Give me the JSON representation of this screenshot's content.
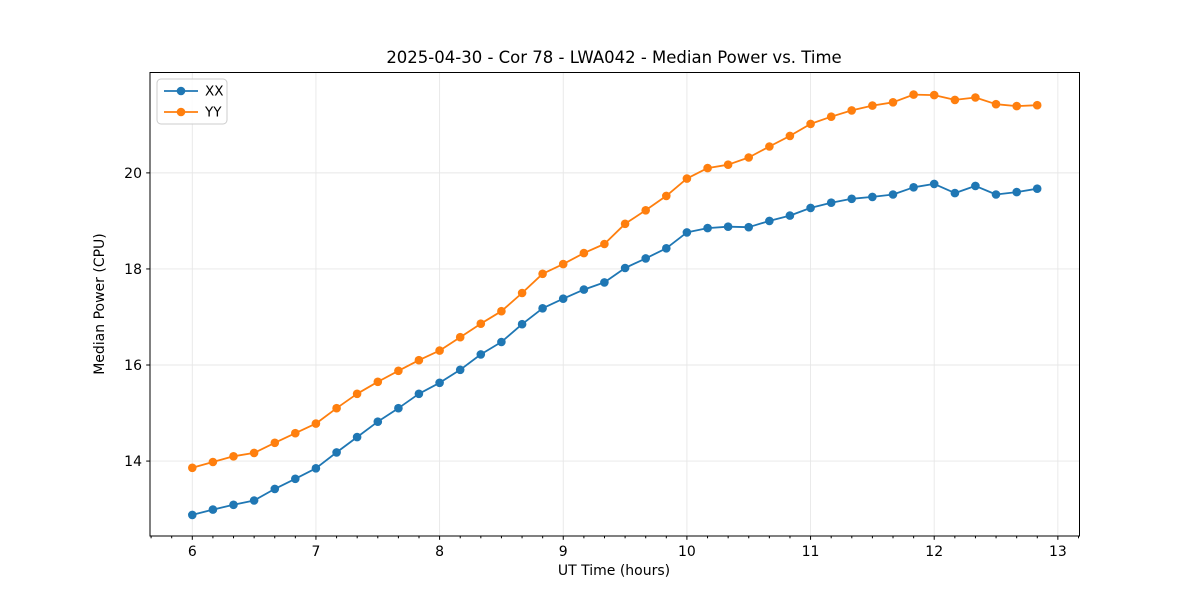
{
  "figure": {
    "background": "#ffffff",
    "grid_color": "#e7e7e7",
    "spine_color": "#000000",
    "text_color": "#000000",
    "legend_border_color": "#cccccc"
  },
  "chart_data": {
    "type": "line",
    "title": "2025-04-30 - Cor 78 - LWA042 - Median Power vs. Time",
    "xlabel": "UT Time (hours)",
    "ylabel": "Median Power (CPU)",
    "xlim": [
      5.658,
      13.175
    ],
    "ylim": [
      12.44,
      22.09
    ],
    "x_ticks": [
      6,
      7,
      8,
      9,
      10,
      11,
      12,
      13
    ],
    "y_ticks": [
      14,
      16,
      18,
      20
    ],
    "x_minor_step": 0.16667,
    "grid": true,
    "legend_position": "upper left",
    "marker": "circle",
    "x": [
      6.0,
      6.167,
      6.333,
      6.5,
      6.667,
      6.833,
      7.0,
      7.167,
      7.333,
      7.5,
      7.667,
      7.833,
      8.0,
      8.167,
      8.333,
      8.5,
      8.667,
      8.833,
      9.0,
      9.167,
      9.333,
      9.5,
      9.667,
      9.833,
      10.0,
      10.167,
      10.333,
      10.5,
      10.667,
      10.833,
      11.0,
      11.167,
      11.333,
      11.5,
      11.667,
      11.833,
      12.0,
      12.167,
      12.333,
      12.5,
      12.667,
      12.833
    ],
    "series": [
      {
        "name": "XX",
        "color": "#1f77b4",
        "values": [
          12.88,
          12.99,
          13.09,
          13.18,
          13.42,
          13.63,
          13.85,
          14.18,
          14.5,
          14.82,
          15.1,
          15.4,
          15.63,
          15.9,
          16.22,
          16.48,
          16.85,
          17.18,
          17.38,
          17.57,
          17.72,
          18.02,
          18.22,
          18.43,
          18.76,
          18.85,
          18.88,
          18.87,
          19.0,
          19.11,
          19.27,
          19.38,
          19.46,
          19.5,
          19.55,
          19.7,
          19.77,
          19.58,
          19.73,
          19.55,
          19.6,
          19.67
        ]
      },
      {
        "name": "YY",
        "color": "#ff7f0e",
        "values": [
          13.86,
          13.98,
          14.1,
          14.17,
          14.38,
          14.58,
          14.78,
          15.1,
          15.4,
          15.65,
          15.88,
          16.1,
          16.3,
          16.58,
          16.86,
          17.12,
          17.5,
          17.9,
          18.1,
          18.33,
          18.52,
          18.94,
          19.22,
          19.52,
          19.88,
          20.1,
          20.17,
          20.32,
          20.55,
          20.77,
          21.02,
          21.17,
          21.3,
          21.4,
          21.47,
          21.63,
          21.62,
          21.52,
          21.57,
          21.43,
          21.39,
          21.41
        ]
      }
    ]
  }
}
